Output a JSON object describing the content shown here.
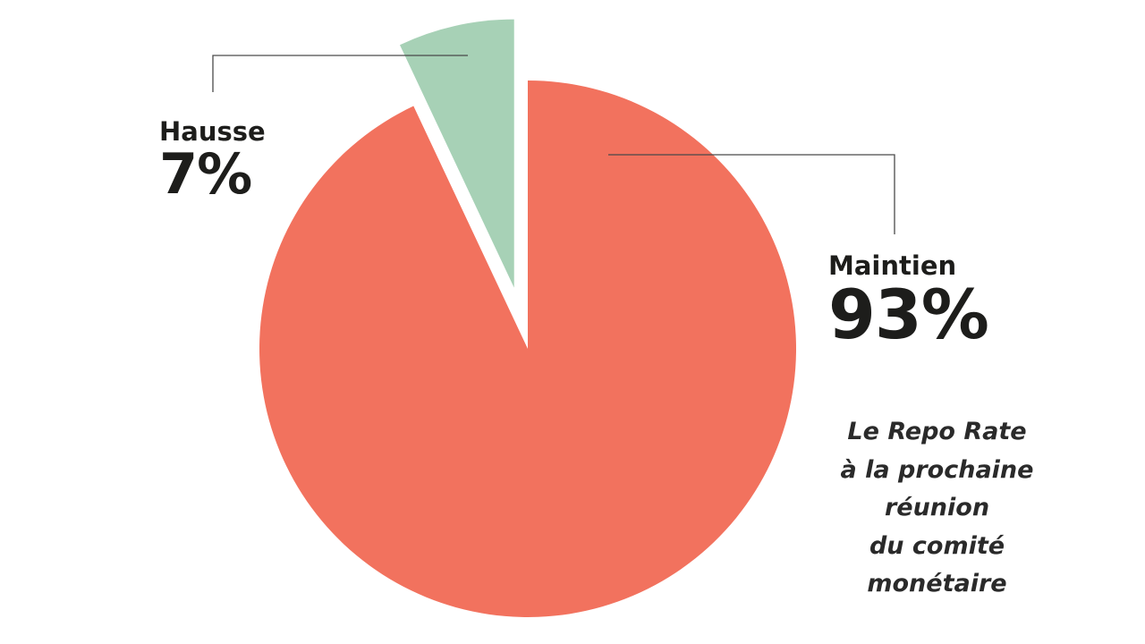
{
  "chart_data": {
    "type": "pie",
    "start_angle": "top",
    "direction": "clockwise",
    "slices": [
      {
        "label": "Maintien",
        "value": 93,
        "value_label": "93%",
        "color": "#F2725E",
        "exploded": false
      },
      {
        "label": "Hausse",
        "value": 7,
        "value_label": "7%",
        "color": "#A7D1B6",
        "exploded": true
      }
    ],
    "annotation": [
      "Le Repo Rate",
      "à la prochaine",
      "réunion",
      "du comité",
      "monétaire"
    ],
    "leader_line_color": "#4a4a4a"
  }
}
